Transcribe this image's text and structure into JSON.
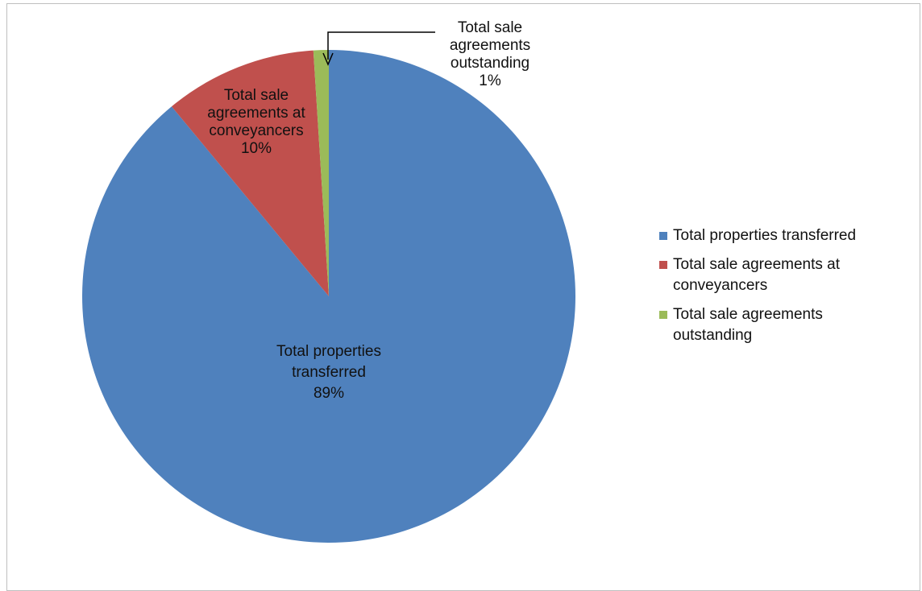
{
  "chart_data": {
    "type": "pie",
    "title": "",
    "slices": [
      {
        "name": "Total properties transferred",
        "value": 89,
        "percent_label": "89%",
        "color": "#4f81bd",
        "label_lines": [
          "Total properties",
          "transferred",
          "89%"
        ],
        "legend_lines": [
          "Total properties transferred"
        ]
      },
      {
        "name": "Total sale agreements at conveyancers",
        "value": 10,
        "percent_label": "10%",
        "color": "#c0504d",
        "label_lines": [
          "Total sale",
          "agreements at",
          "conveyancers",
          "10%"
        ],
        "legend_lines": [
          "Total sale agreements at",
          "conveyancers"
        ]
      },
      {
        "name": "Total sale agreements outstanding",
        "value": 1,
        "percent_label": "1%",
        "color": "#9bbb59",
        "label_lines": [
          "Total sale",
          "agreements",
          "outstanding",
          "1%"
        ],
        "legend_lines": [
          "Total sale agreements",
          "outstanding"
        ]
      }
    ],
    "legend_position": "right",
    "start_angle": "12 o'clock, clockwise"
  }
}
